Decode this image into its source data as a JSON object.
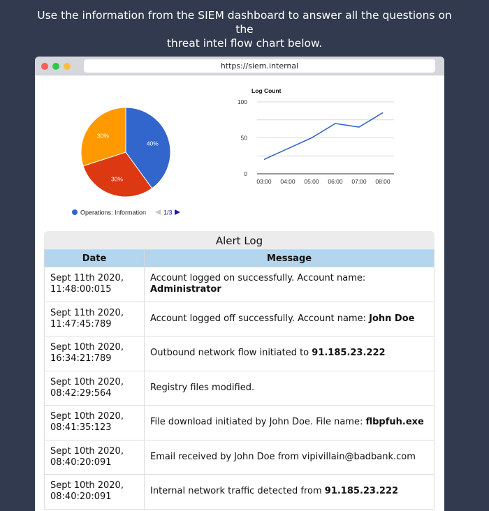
{
  "intro": {
    "line1": "Use the information from the SIEM dashboard to answer all the questions on the",
    "line2": "threat intel flow chart below."
  },
  "browser": {
    "url": "https://siem.internal"
  },
  "chart_data": [
    {
      "type": "pie",
      "labels": [
        "40%",
        "30%",
        "30%"
      ],
      "values": [
        40,
        30,
        30
      ],
      "colors": [
        "#3366cc",
        "#dc3912",
        "#ff9900"
      ],
      "legend": {
        "entry": "Operations: Information",
        "page": "1/3",
        "placement": "bottom"
      }
    },
    {
      "type": "line",
      "title": "Log Count",
      "categories": [
        "03:00",
        "04:00",
        "05:00",
        "06:00",
        "07:00",
        "08:00"
      ],
      "values": [
        20,
        35,
        50,
        70,
        65,
        85
      ],
      "yticks": [
        0,
        50,
        100
      ],
      "ylim": [
        0,
        100
      ],
      "color": "#3366cc",
      "grid": true
    }
  ],
  "alert_log": {
    "title": "Alert Log",
    "columns": [
      "Date",
      "Message"
    ],
    "rows": [
      {
        "date1": "Sept 11th 2020,",
        "date2": "11:48:00:015",
        "msg": "Account logged on successfully. Account name: ",
        "bold": "Administrator"
      },
      {
        "date1": "Sept 11th 2020,",
        "date2": "11:47:45:789",
        "msg": "Account logged off successfully. Account name: ",
        "bold": "John Doe"
      },
      {
        "date1": "Sept 10th 2020,",
        "date2": "16:34:21:789",
        "msg": "Outbound network flow initiated to ",
        "bold": "91.185.23.222"
      },
      {
        "date1": "Sept 10th 2020,",
        "date2": "08:42:29:564",
        "msg": "Registry files modified.",
        "bold": ""
      },
      {
        "date1": "Sept 10th 2020,",
        "date2": "08:41:35:123",
        "msg": "File download initiated by John Doe. File name: ",
        "bold": "flbpfuh.exe"
      },
      {
        "date1": "Sept 10th 2020,",
        "date2": "08:40:20:091",
        "msg": "Email received by John Doe from vipivillain@badbank.com",
        "bold": ""
      },
      {
        "date1": "Sept 10th 2020,",
        "date2": "08:40:20:091",
        "msg": "Internal network traffic detected from ",
        "bold": "91.185.23.222"
      }
    ]
  }
}
